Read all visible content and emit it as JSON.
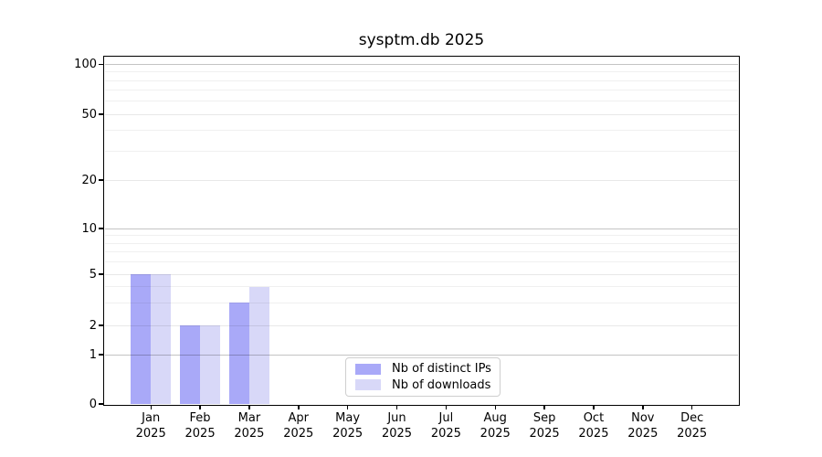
{
  "title": "sysptm.db 2025",
  "chart_data": {
    "type": "bar",
    "title": "sysptm.db 2025",
    "xlabel": "",
    "ylabel": "",
    "year": "2025",
    "categories": [
      "Jan",
      "Feb",
      "Mar",
      "Apr",
      "May",
      "Jun",
      "Jul",
      "Aug",
      "Sep",
      "Oct",
      "Nov",
      "Dec"
    ],
    "series": [
      {
        "name": "Nb of distinct IPs",
        "color": "#a9a9f8",
        "values": [
          5,
          2,
          3,
          0,
          0,
          0,
          0,
          0,
          0,
          0,
          0,
          0
        ]
      },
      {
        "name": "Nb of downloads",
        "color": "#d8d8f8",
        "values": [
          5,
          2,
          4,
          0,
          0,
          0,
          0,
          0,
          0,
          0,
          0,
          0
        ]
      }
    ],
    "yticks": [
      0,
      1,
      2,
      5,
      10,
      20,
      50,
      100
    ],
    "minor_gridlines": [
      3,
      4,
      6,
      7,
      8,
      9,
      30,
      40,
      60,
      70,
      80,
      90
    ],
    "scale": "symlog",
    "ylim": [
      0,
      110
    ],
    "grid": "on",
    "legend_position": "lower-center",
    "colors": {
      "grid_decade": "rgba(0,0,0,0.23)",
      "grid_major": "rgba(0,0,0,0.09)",
      "grid_minor": "rgba(0,0,0,0.06)",
      "spine": "#000000",
      "text": "#000000"
    }
  }
}
